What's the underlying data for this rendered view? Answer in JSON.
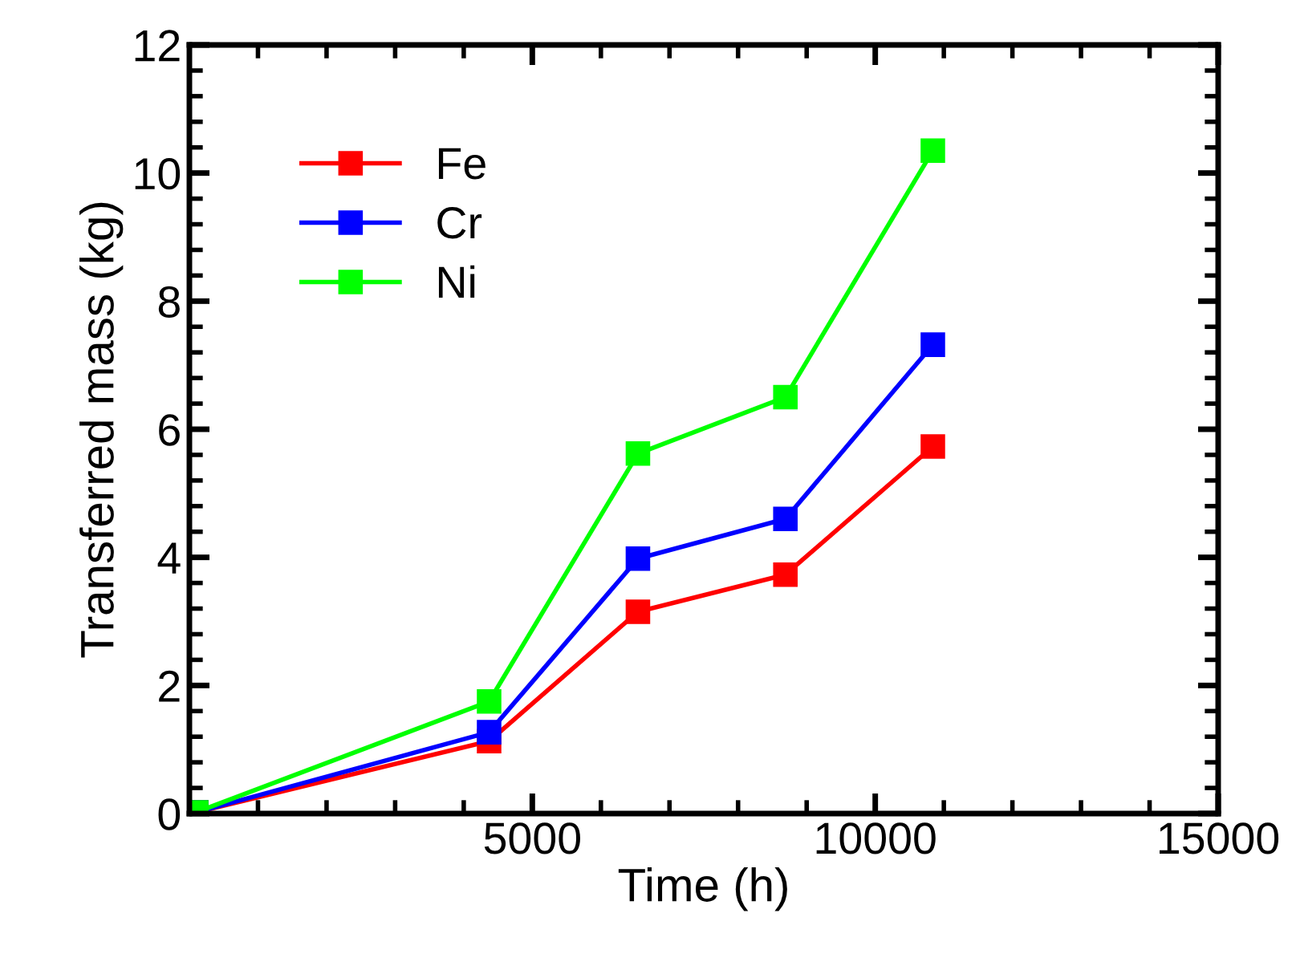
{
  "chart_data": {
    "type": "line",
    "xlabel": "Time (h)",
    "ylabel": "Transferred mass (kg)",
    "x": [
      100,
      4370,
      6540,
      8690,
      10840
    ],
    "series": [
      {
        "name": "Fe",
        "color": "#ff0000",
        "values": [
          0.02,
          1.13,
          3.15,
          3.73,
          5.73
        ]
      },
      {
        "name": "Cr",
        "color": "#0000ff",
        "values": [
          0.02,
          1.27,
          3.98,
          4.6,
          7.32
        ]
      },
      {
        "name": "Ni",
        "color": "#00ff00",
        "values": [
          0.02,
          1.75,
          5.62,
          6.5,
          10.35
        ]
      }
    ],
    "xlim": [
      0,
      15000
    ],
    "xticks": [
      5000,
      10000,
      15000
    ],
    "ylim": [
      0,
      12
    ],
    "yticks": [
      0,
      2,
      4,
      6,
      8,
      10,
      12
    ],
    "grid": false,
    "legend": "top left",
    "marker": "square",
    "line_style": "solid"
  }
}
